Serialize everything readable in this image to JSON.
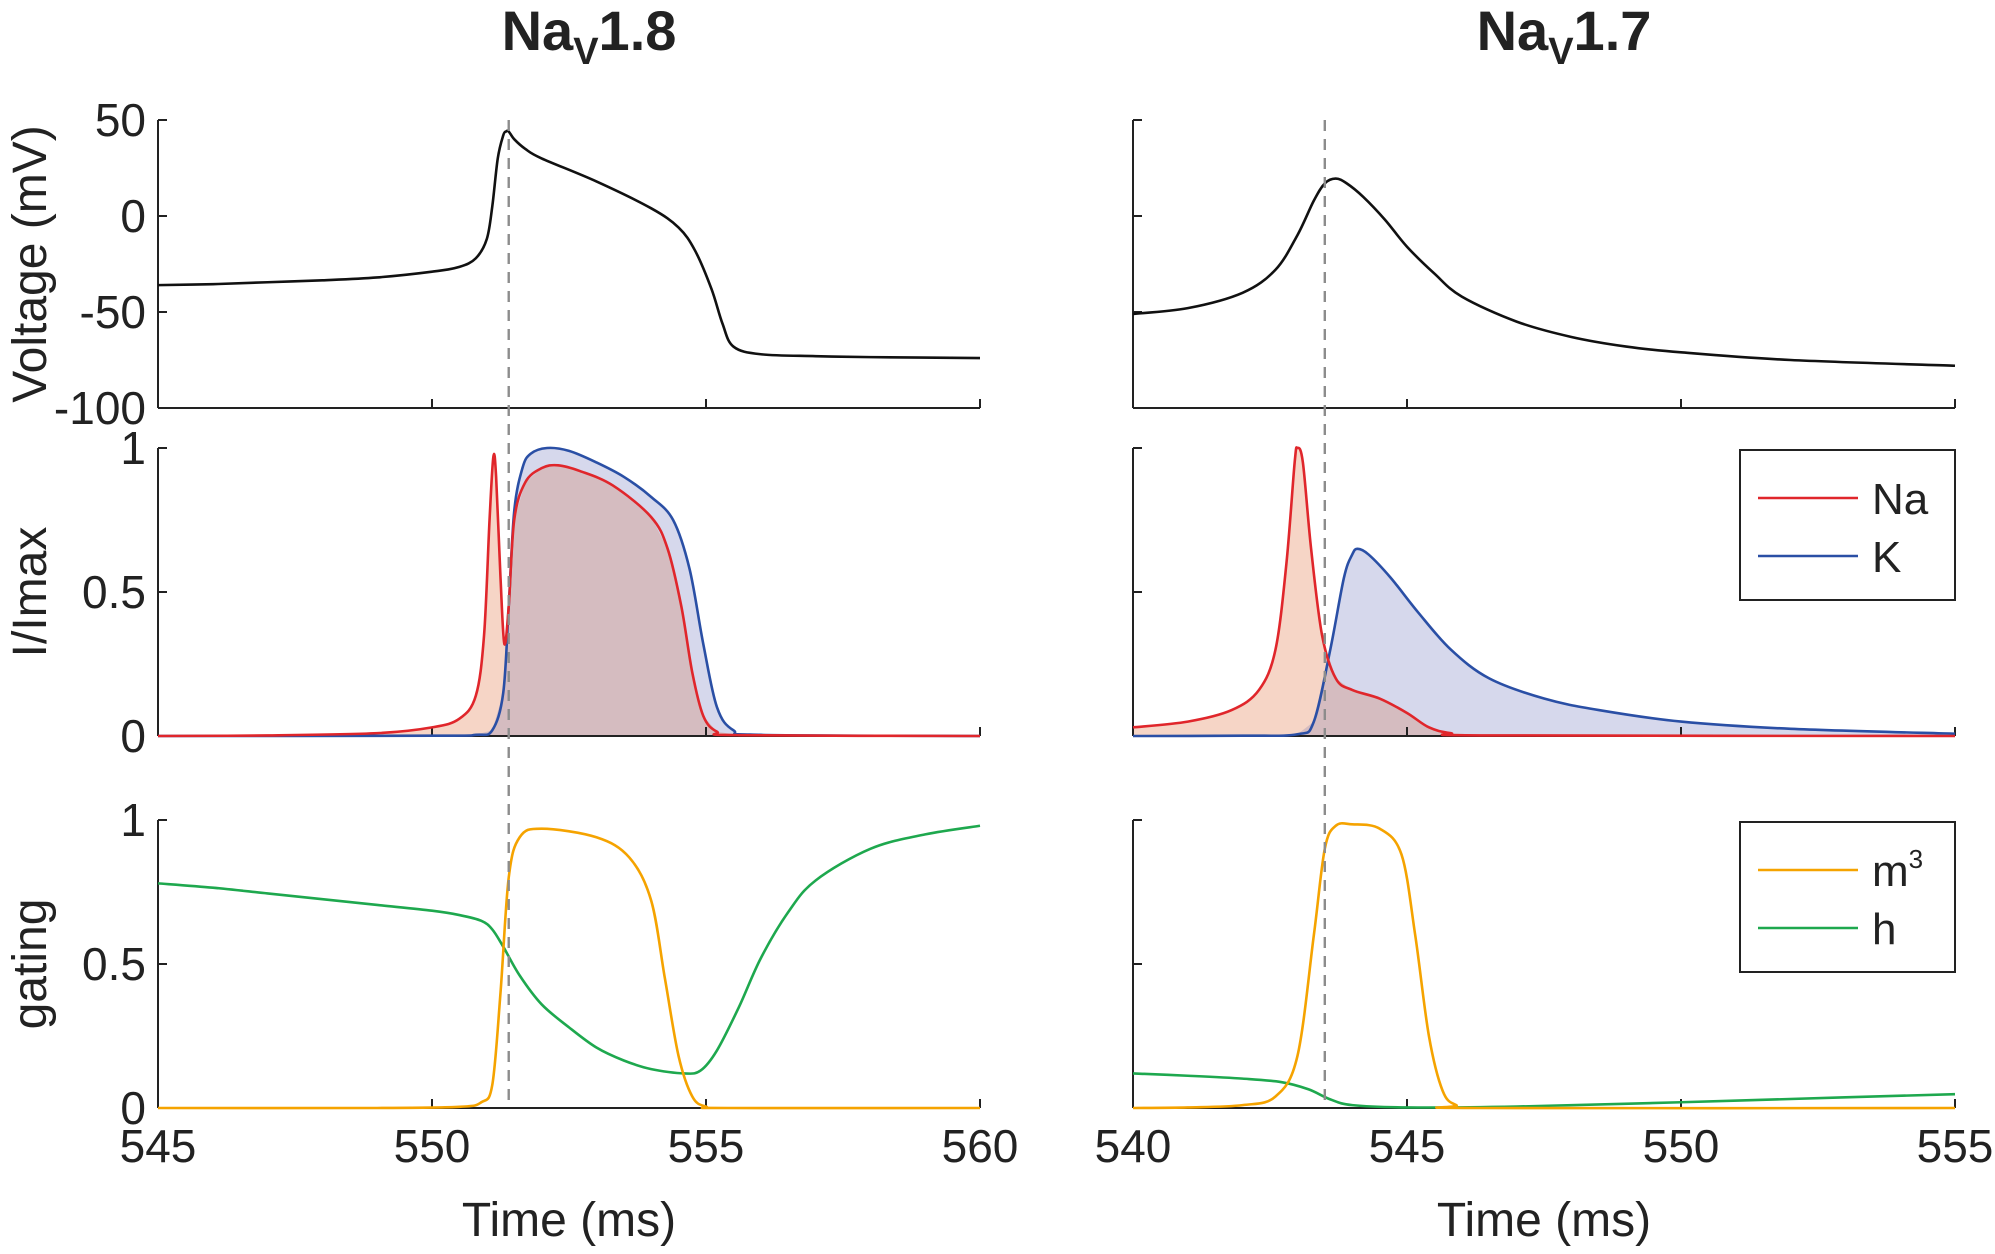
{
  "chart_data": {
    "type": "line",
    "columns": [
      {
        "title_base": "Na",
        "title_sub": "V",
        "title_rest": "1.8",
        "xlim": [
          545,
          560
        ],
        "xticks": [
          "545",
          "550",
          "555",
          "560"
        ],
        "xlabel": "Time (ms)",
        "marker_x": 551.4
      },
      {
        "title_base": "Na",
        "title_sub": "V",
        "title_rest": "1.7",
        "xlim": [
          540,
          555
        ],
        "xticks": [
          "540",
          "545",
          "550",
          "555"
        ],
        "xlabel": "Time (ms)",
        "marker_x": 543.5
      }
    ],
    "rows": [
      {
        "ylabel": "Voltage (mV)",
        "ylim": [
          -100,
          50
        ],
        "yticks": [
          "50",
          "0",
          "-50",
          "-100"
        ]
      },
      {
        "ylabel": "I/Imax",
        "ylim": [
          0,
          1
        ],
        "yticks": [
          "1",
          "0.5",
          "0"
        ]
      },
      {
        "ylabel": "gating",
        "ylim": [
          0,
          1
        ],
        "yticks": [
          "1",
          "0.5",
          "0"
        ]
      }
    ],
    "colors": {
      "na": "#e0262b",
      "k": "#2a4fa5",
      "m3": "#f5a300",
      "h": "#1ea84e",
      "v": "#111111",
      "na_fill": "#f6d5c6",
      "k_fill": "#d6d8ec",
      "overlap_fill": "#d5bcc0",
      "marker": "#8c8c8c"
    },
    "legends": {
      "currents": [
        {
          "label": "Na",
          "color": "#e0262b"
        },
        {
          "label": "K",
          "color": "#2a4fa5"
        }
      ],
      "gating": [
        {
          "label": "m",
          "sup": "3",
          "color": "#f5a300"
        },
        {
          "label": "h",
          "color": "#1ea84e"
        }
      ]
    },
    "series": {
      "nav18": {
        "voltage": [
          [
            545,
            -36
          ],
          [
            546,
            -35.5
          ],
          [
            547,
            -34.5
          ],
          [
            548,
            -33.5
          ],
          [
            549,
            -32
          ],
          [
            550,
            -29
          ],
          [
            550.5,
            -26.5
          ],
          [
            550.8,
            -22
          ],
          [
            551.0,
            -12
          ],
          [
            551.1,
            5
          ],
          [
            551.2,
            30
          ],
          [
            551.3,
            42
          ],
          [
            551.35,
            44
          ],
          [
            551.4,
            44
          ],
          [
            551.5,
            40
          ],
          [
            551.7,
            35
          ],
          [
            552,
            30
          ],
          [
            553,
            18
          ],
          [
            554,
            4
          ],
          [
            554.5,
            -6
          ],
          [
            554.8,
            -18
          ],
          [
            555.1,
            -38
          ],
          [
            555.3,
            -56
          ],
          [
            555.5,
            -68
          ],
          [
            556,
            -72
          ],
          [
            557,
            -73
          ],
          [
            558,
            -73.5
          ],
          [
            560,
            -74
          ]
        ],
        "na": [
          [
            545,
            0
          ],
          [
            547,
            0.002
          ],
          [
            549,
            0.01
          ],
          [
            550,
            0.03
          ],
          [
            550.5,
            0.06
          ],
          [
            550.8,
            0.14
          ],
          [
            550.95,
            0.35
          ],
          [
            551.05,
            0.75
          ],
          [
            551.12,
            0.97
          ],
          [
            551.17,
            0.9
          ],
          [
            551.25,
            0.55
          ],
          [
            551.32,
            0.32
          ],
          [
            551.4,
            0.45
          ],
          [
            551.5,
            0.75
          ],
          [
            551.7,
            0.88
          ],
          [
            552,
            0.93
          ],
          [
            552.3,
            0.94
          ],
          [
            552.7,
            0.92
          ],
          [
            553.3,
            0.87
          ],
          [
            554,
            0.76
          ],
          [
            554.3,
            0.65
          ],
          [
            554.55,
            0.45
          ],
          [
            554.75,
            0.22
          ],
          [
            554.95,
            0.07
          ],
          [
            555.2,
            0.015
          ],
          [
            555.6,
            0.003
          ],
          [
            560,
            0
          ]
        ],
        "k": [
          [
            545,
            0
          ],
          [
            550,
            0.001
          ],
          [
            550.8,
            0.004
          ],
          [
            551.1,
            0.02
          ],
          [
            551.3,
            0.15
          ],
          [
            551.4,
            0.45
          ],
          [
            551.5,
            0.78
          ],
          [
            551.65,
            0.93
          ],
          [
            551.8,
            0.98
          ],
          [
            552.1,
            1.0
          ],
          [
            552.5,
            0.99
          ],
          [
            553,
            0.95
          ],
          [
            553.5,
            0.9
          ],
          [
            554,
            0.83
          ],
          [
            554.4,
            0.75
          ],
          [
            554.7,
            0.58
          ],
          [
            554.95,
            0.32
          ],
          [
            555.2,
            0.1
          ],
          [
            555.5,
            0.02
          ],
          [
            556,
            0.004
          ],
          [
            560,
            0
          ]
        ],
        "m3": [
          [
            545,
            0
          ],
          [
            549,
            0
          ],
          [
            550.5,
            0.004
          ],
          [
            550.9,
            0.02
          ],
          [
            551.1,
            0.08
          ],
          [
            551.25,
            0.4
          ],
          [
            551.4,
            0.8
          ],
          [
            551.6,
            0.94
          ],
          [
            552,
            0.97
          ],
          [
            553,
            0.94
          ],
          [
            553.6,
            0.87
          ],
          [
            554,
            0.72
          ],
          [
            554.25,
            0.45
          ],
          [
            554.5,
            0.18
          ],
          [
            554.75,
            0.04
          ],
          [
            555.0,
            0.005
          ],
          [
            555.4,
            0
          ],
          [
            560,
            0
          ]
        ],
        "h": [
          [
            545,
            0.78
          ],
          [
            546,
            0.765
          ],
          [
            547,
            0.745
          ],
          [
            548,
            0.725
          ],
          [
            549,
            0.705
          ],
          [
            550,
            0.685
          ],
          [
            550.5,
            0.67
          ],
          [
            550.9,
            0.65
          ],
          [
            551.1,
            0.62
          ],
          [
            551.3,
            0.56
          ],
          [
            551.6,
            0.46
          ],
          [
            552,
            0.36
          ],
          [
            552.5,
            0.28
          ],
          [
            553,
            0.21
          ],
          [
            553.5,
            0.165
          ],
          [
            554,
            0.135
          ],
          [
            554.6,
            0.12
          ],
          [
            554.9,
            0.13
          ],
          [
            555.2,
            0.2
          ],
          [
            555.6,
            0.35
          ],
          [
            556,
            0.52
          ],
          [
            556.5,
            0.68
          ],
          [
            557,
            0.79
          ],
          [
            558,
            0.9
          ],
          [
            559,
            0.95
          ],
          [
            560,
            0.98
          ]
        ]
      },
      "nav17": {
        "voltage": [
          [
            540,
            -51
          ],
          [
            541,
            -48
          ],
          [
            542,
            -40
          ],
          [
            542.6,
            -28
          ],
          [
            543,
            -10
          ],
          [
            543.3,
            8
          ],
          [
            543.5,
            17
          ],
          [
            543.7,
            19.5
          ],
          [
            543.9,
            17
          ],
          [
            544.2,
            10
          ],
          [
            544.6,
            -2
          ],
          [
            545,
            -16
          ],
          [
            545.5,
            -30
          ],
          [
            546,
            -42
          ],
          [
            547,
            -55
          ],
          [
            548,
            -63
          ],
          [
            549,
            -68
          ],
          [
            550,
            -71
          ],
          [
            552,
            -75
          ],
          [
            555,
            -78
          ]
        ],
        "na": [
          [
            540,
            0.03
          ],
          [
            541,
            0.05
          ],
          [
            541.8,
            0.09
          ],
          [
            542.3,
            0.16
          ],
          [
            542.6,
            0.3
          ],
          [
            542.8,
            0.6
          ],
          [
            542.95,
            0.95
          ],
          [
            543,
            1.0
          ],
          [
            543.1,
            0.95
          ],
          [
            543.25,
            0.65
          ],
          [
            543.45,
            0.35
          ],
          [
            543.7,
            0.2
          ],
          [
            544,
            0.16
          ],
          [
            544.5,
            0.13
          ],
          [
            545,
            0.08
          ],
          [
            545.4,
            0.03
          ],
          [
            545.8,
            0.01
          ],
          [
            546.5,
            0.002
          ],
          [
            555,
            0
          ]
        ],
        "k": [
          [
            540,
            0
          ],
          [
            542,
            0.001
          ],
          [
            543,
            0.006
          ],
          [
            543.3,
            0.05
          ],
          [
            543.6,
            0.3
          ],
          [
            543.85,
            0.55
          ],
          [
            544,
            0.63
          ],
          [
            544.1,
            0.65
          ],
          [
            544.3,
            0.63
          ],
          [
            544.7,
            0.55
          ],
          [
            545.2,
            0.43
          ],
          [
            545.8,
            0.3
          ],
          [
            546.5,
            0.2
          ],
          [
            547.5,
            0.13
          ],
          [
            548.5,
            0.09
          ],
          [
            550,
            0.05
          ],
          [
            552,
            0.025
          ],
          [
            555,
            0.008
          ]
        ],
        "m3": [
          [
            540,
            0
          ],
          [
            541,
            0.002
          ],
          [
            542,
            0.01
          ],
          [
            542.6,
            0.04
          ],
          [
            543,
            0.18
          ],
          [
            543.3,
            0.6
          ],
          [
            543.5,
            0.9
          ],
          [
            543.7,
            0.98
          ],
          [
            544,
            0.985
          ],
          [
            544.5,
            0.97
          ],
          [
            544.9,
            0.88
          ],
          [
            545.15,
            0.6
          ],
          [
            545.4,
            0.25
          ],
          [
            545.65,
            0.06
          ],
          [
            545.9,
            0.01
          ],
          [
            546.3,
            0
          ],
          [
            555,
            0
          ]
        ],
        "h": [
          [
            540,
            0.12
          ],
          [
            541,
            0.112
          ],
          [
            542,
            0.102
          ],
          [
            542.7,
            0.09
          ],
          [
            543.2,
            0.065
          ],
          [
            543.6,
            0.03
          ],
          [
            544,
            0.01
          ],
          [
            545,
            0.002
          ],
          [
            547,
            0.005
          ],
          [
            550,
            0.02
          ],
          [
            553,
            0.037
          ],
          [
            555,
            0.048
          ]
        ]
      }
    }
  }
}
